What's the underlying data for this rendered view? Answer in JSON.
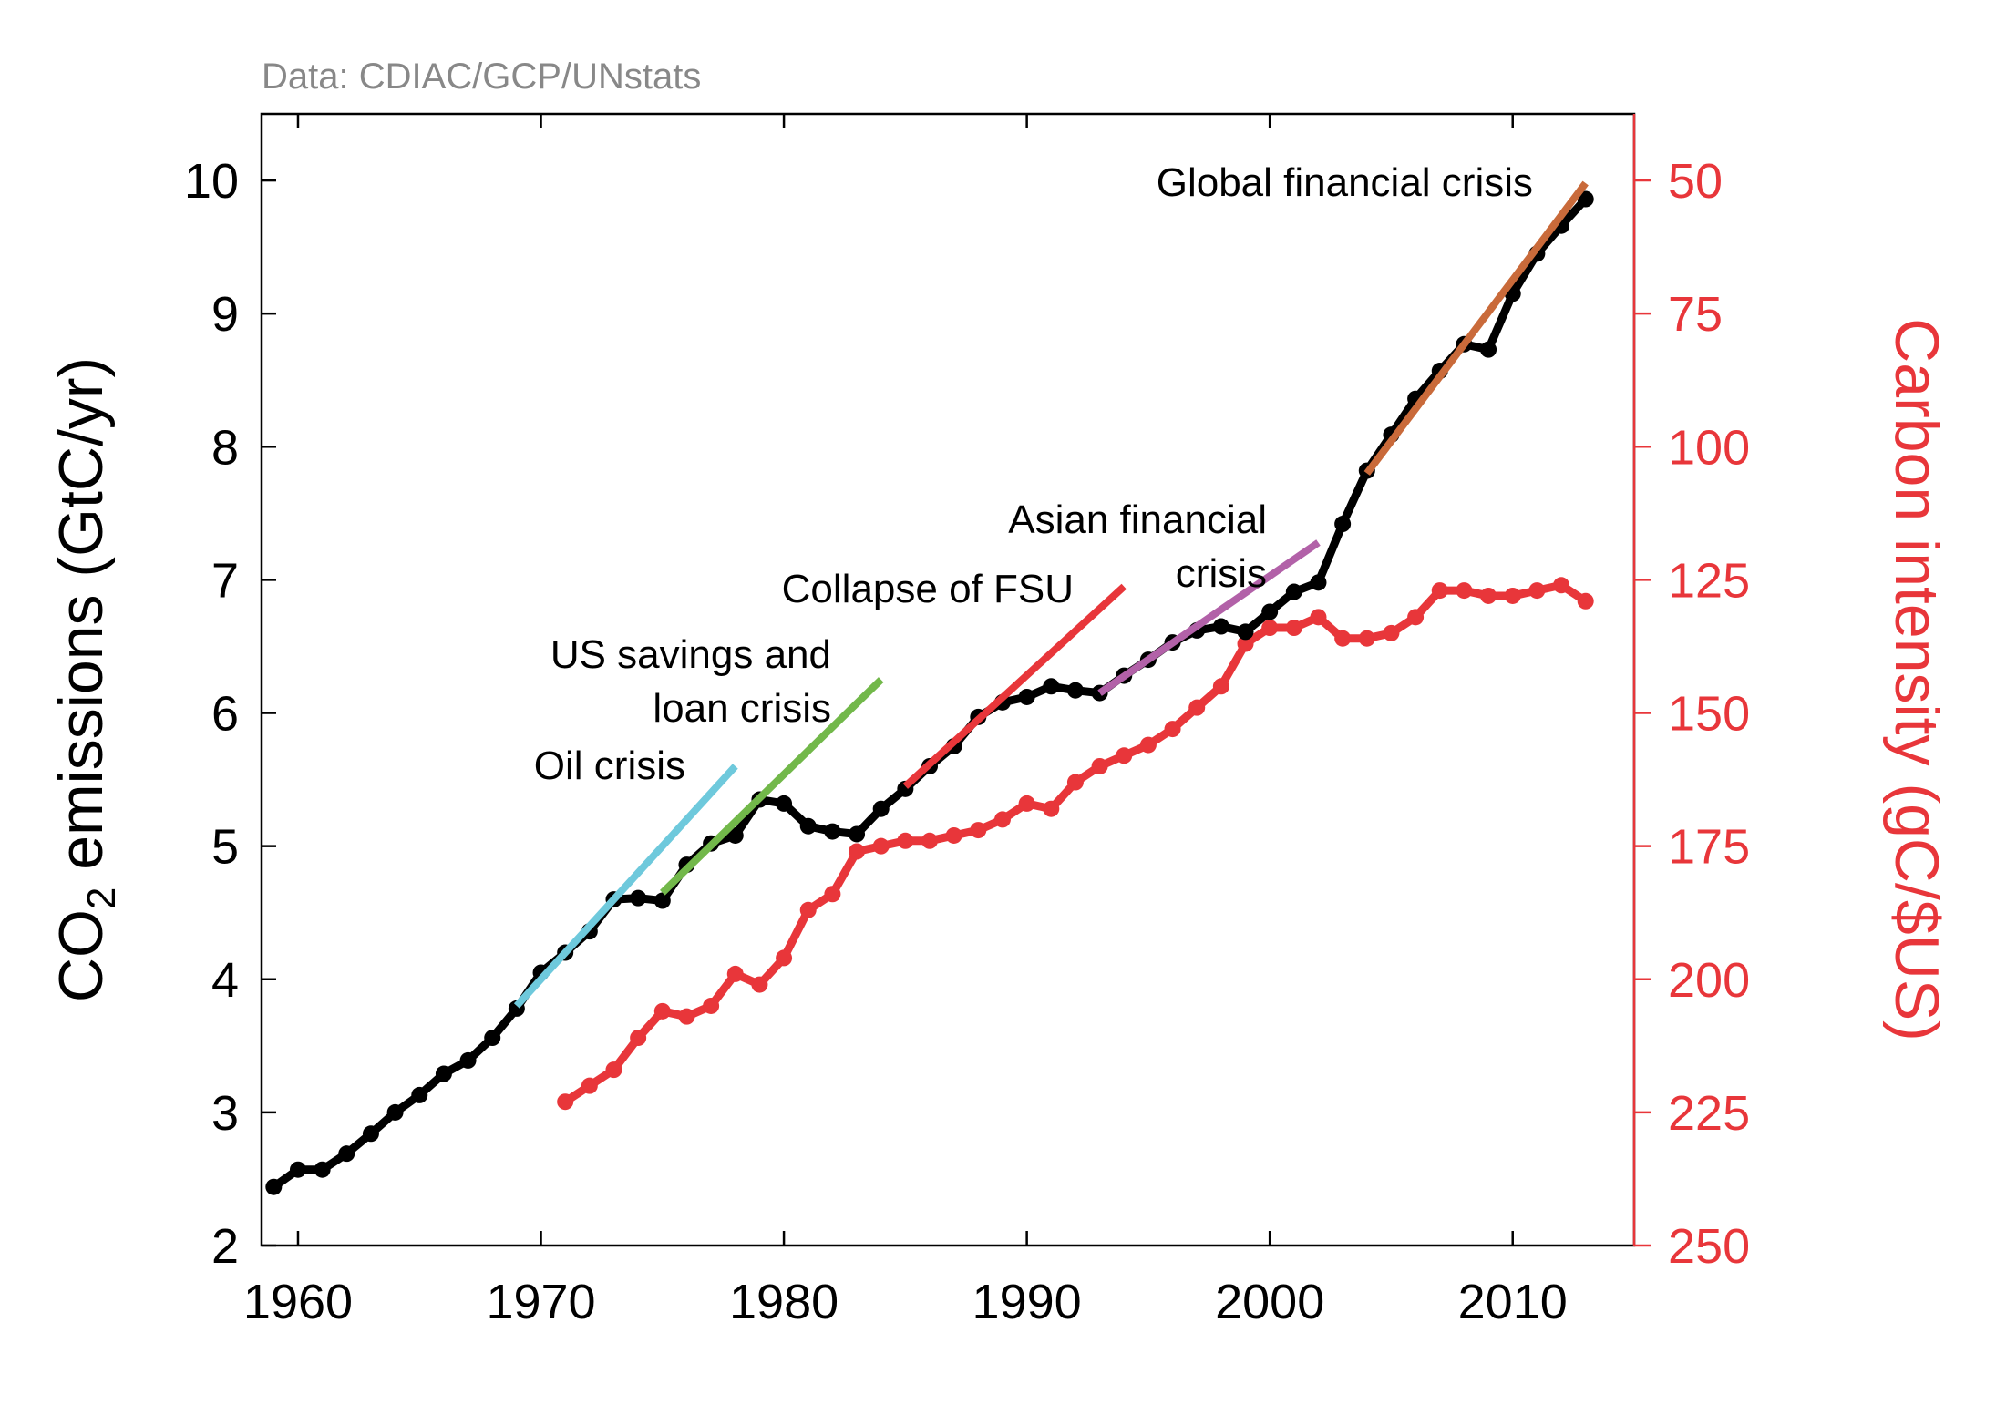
{
  "source_note": "Data: CDIAC/GCP/UNstats",
  "colors": {
    "emissions": "#000000",
    "intensity": "#e8363a",
    "oil_crisis": "#6ec9dc",
    "us_savings": "#72b84a",
    "fsu": "#e8363a",
    "asian": "#b261a8",
    "gfc": "#c96a3a"
  },
  "chart_data": {
    "type": "line",
    "source": "Data: CDIAC/GCP/UNstats",
    "xlim": [
      1958.5,
      2015
    ],
    "x_ticks": [
      1960,
      1970,
      1980,
      1990,
      2000,
      2010
    ],
    "x_tick_labels": [
      "1960",
      "1970",
      "1980",
      "1990",
      "2000",
      "2010"
    ],
    "y_left": {
      "label_prefix": "CO",
      "label_sub": "2",
      "label_suffix": " emissions (GtC/yr)",
      "ylim": [
        2,
        10.5
      ],
      "ticks": [
        2,
        3,
        4,
        5,
        6,
        7,
        8,
        9,
        10
      ],
      "tick_labels": [
        "2",
        "3",
        "4",
        "5",
        "6",
        "7",
        "8",
        "9",
        "10"
      ]
    },
    "y_right": {
      "label": "Carbon intensity (gC/$US)",
      "inverted": true,
      "ylim": [
        250,
        37.5
      ],
      "ticks": [
        50,
        75,
        100,
        125,
        150,
        175,
        200,
        225,
        250
      ],
      "tick_labels": [
        "50",
        "75",
        "100",
        "125",
        "150",
        "175",
        "200",
        "225",
        "250"
      ]
    },
    "series": [
      {
        "axis": "left",
        "x": [
          1959,
          1960,
          1961,
          1962,
          1963,
          1964,
          1965,
          1966,
          1967,
          1968,
          1969,
          1970,
          1971,
          1972,
          1973,
          1974,
          1975,
          1976,
          1977,
          1978,
          1979,
          1980,
          1981,
          1982,
          1983,
          1984,
          1985,
          1986,
          1987,
          1988,
          1989,
          1990,
          1991,
          1992,
          1993,
          1994,
          1995,
          1996,
          1997,
          1998,
          1999,
          2000,
          2001,
          2002,
          2003,
          2004,
          2005,
          2006,
          2007,
          2008,
          2009,
          2010,
          2011,
          2012,
          2013
        ],
        "values": [
          2.44,
          2.57,
          2.57,
          2.69,
          2.84,
          3.0,
          3.13,
          3.29,
          3.39,
          3.56,
          3.78,
          4.05,
          4.2,
          4.36,
          4.6,
          4.61,
          4.59,
          4.86,
          5.02,
          5.08,
          5.35,
          5.32,
          5.15,
          5.11,
          5.09,
          5.28,
          5.43,
          5.6,
          5.75,
          5.97,
          6.08,
          6.12,
          6.2,
          6.17,
          6.15,
          6.28,
          6.4,
          6.53,
          6.62,
          6.65,
          6.61,
          6.76,
          6.91,
          6.98,
          7.42,
          7.82,
          8.09,
          8.36,
          8.57,
          8.77,
          8.73,
          9.15,
          9.45,
          9.66,
          9.86
        ]
      },
      {
        "axis": "right",
        "x": [
          1971,
          1972,
          1973,
          1974,
          1975,
          1976,
          1977,
          1978,
          1979,
          1980,
          1981,
          1982,
          1983,
          1984,
          1985,
          1986,
          1987,
          1988,
          1989,
          1990,
          1991,
          1992,
          1993,
          1994,
          1995,
          1996,
          1997,
          1998,
          1999,
          2000,
          2001,
          2002,
          2003,
          2004,
          2005,
          2006,
          2007,
          2008,
          2009,
          2010,
          2011,
          2012,
          2013
        ],
        "values": [
          223,
          220,
          217,
          211,
          206,
          207,
          205,
          199,
          201,
          196,
          187,
          184,
          176,
          175,
          174,
          174,
          173,
          172,
          170,
          167,
          168,
          163,
          160,
          158,
          156,
          153,
          149,
          145,
          137,
          134,
          134,
          132,
          136,
          136,
          135,
          132,
          127,
          127,
          128,
          128,
          127,
          126,
          129
        ]
      }
    ],
    "trend_lines": [
      {
        "x": [
          1969,
          1978
        ],
        "values": [
          3.8,
          5.6
        ],
        "color_key": "oil_crisis"
      },
      {
        "x": [
          1975,
          1984
        ],
        "values": [
          4.65,
          6.25
        ],
        "color_key": "us_savings"
      },
      {
        "x": [
          1985,
          1994
        ],
        "values": [
          5.45,
          6.95
        ],
        "color_key": "fsu"
      },
      {
        "x": [
          1993,
          2002
        ],
        "values": [
          6.15,
          7.28
        ],
        "color_key": "asian"
      },
      {
        "x": [
          2004,
          2013
        ],
        "values": [
          7.8,
          9.98
        ],
        "color_key": "gfc"
      }
    ],
    "annotations": [
      {
        "lines": [
          "Oil crisis"
        ],
        "anchor": "end"
      },
      {
        "lines": [
          "US savings and",
          "loan crisis"
        ],
        "anchor": "end"
      },
      {
        "lines": [
          "Collapse of FSU"
        ],
        "anchor": "end"
      },
      {
        "lines": [
          "Asian financial",
          "crisis"
        ],
        "anchor": "end"
      },
      {
        "lines": [
          "Global financial crisis"
        ],
        "anchor": "end"
      }
    ]
  }
}
